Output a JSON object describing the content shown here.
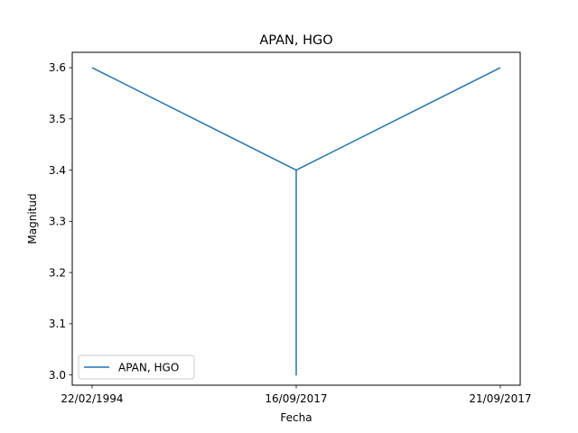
{
  "chart_data": {
    "type": "line",
    "title": "APAN, HGO",
    "xlabel": "Fecha",
    "ylabel": "Magnitud",
    "categories": [
      "22/02/1994",
      "16/09/2017",
      "21/09/2017"
    ],
    "series": [
      {
        "name": "APAN, HGO",
        "color": "#1f77b4",
        "points": [
          {
            "x": "22/02/1994",
            "y": 3.6
          },
          {
            "x": "16/09/2017",
            "y": 3.4
          },
          {
            "x": "16/09/2017",
            "y": 3.0
          },
          {
            "x": "16/09/2017",
            "y": 3.4
          },
          {
            "x": "21/09/2017",
            "y": 3.6
          }
        ]
      }
    ],
    "ylim": [
      2.98,
      3.63
    ],
    "yticks": [
      "3.0",
      "3.1",
      "3.2",
      "3.3",
      "3.4",
      "3.5",
      "3.6"
    ],
    "legend": "lower-left",
    "grid": false
  }
}
